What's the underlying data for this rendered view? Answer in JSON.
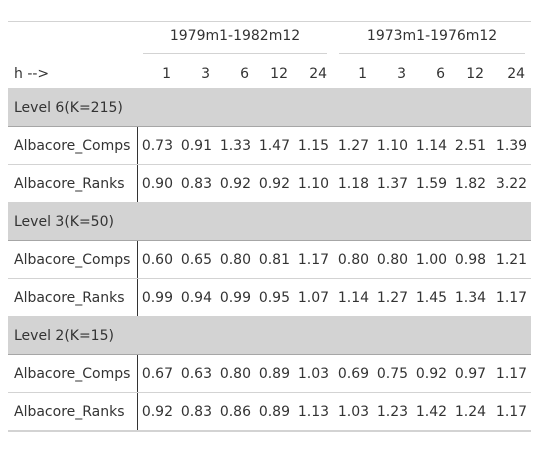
{
  "table": {
    "spanners": [
      "1979m1-1982m12",
      "1973m1-1976m12"
    ],
    "stub_header": "h -->",
    "horizons": [
      "1",
      "3",
      "6",
      "12",
      "24",
      "1",
      "3",
      "6",
      "12",
      "24"
    ],
    "groups": [
      {
        "label": "Level 6(K=215)",
        "rows": [
          {
            "name": "Albacore_Comps",
            "values": [
              "0.73",
              "0.91",
              "1.33",
              "1.47",
              "1.15",
              "1.27",
              "1.10",
              "1.14",
              "2.51",
              "1.39"
            ]
          },
          {
            "name": "Albacore_Ranks",
            "values": [
              "0.90",
              "0.83",
              "0.92",
              "0.92",
              "1.10",
              "1.18",
              "1.37",
              "1.59",
              "1.82",
              "3.22"
            ]
          }
        ]
      },
      {
        "label": "Level 3(K=50)",
        "rows": [
          {
            "name": "Albacore_Comps",
            "values": [
              "0.60",
              "0.65",
              "0.80",
              "0.81",
              "1.17",
              "0.80",
              "0.80",
              "1.00",
              "0.98",
              "1.21"
            ]
          },
          {
            "name": "Albacore_Ranks",
            "values": [
              "0.99",
              "0.94",
              "0.99",
              "0.95",
              "1.07",
              "1.14",
              "1.27",
              "1.45",
              "1.34",
              "1.17"
            ]
          }
        ]
      },
      {
        "label": "Level 2(K=15)",
        "rows": [
          {
            "name": "Albacore_Comps",
            "values": [
              "0.67",
              "0.63",
              "0.80",
              "0.89",
              "1.03",
              "0.69",
              "0.75",
              "0.92",
              "0.97",
              "1.17"
            ]
          },
          {
            "name": "Albacore_Ranks",
            "values": [
              "0.92",
              "0.83",
              "0.86",
              "0.89",
              "1.13",
              "1.03",
              "1.23",
              "1.42",
              "1.24",
              "1.17"
            ]
          }
        ]
      }
    ]
  }
}
